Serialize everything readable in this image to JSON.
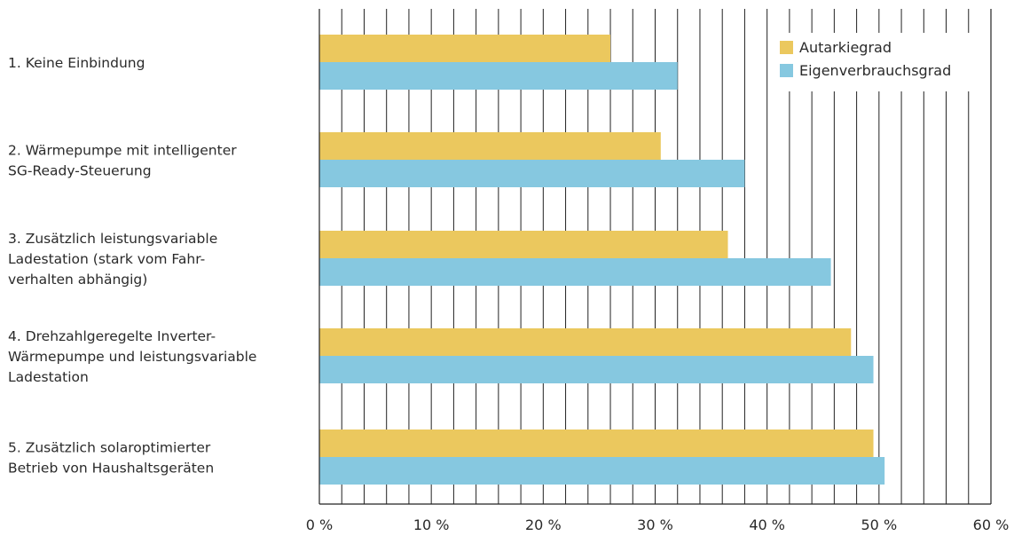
{
  "chart_data": {
    "type": "bar",
    "orientation": "horizontal",
    "categories": [
      [
        "1. Keine Einbindung"
      ],
      [
        "2. Wärmepumpe mit intelligenter",
        "SG-Ready-Steuerung"
      ],
      [
        "3. Zusätzlich leistungsvariable",
        "Ladestation (stark vom Fahr-",
        "verhalten abhängig)"
      ],
      [
        "4. Drehzahlgeregelte Inverter-",
        "Wärmepumpe und leistungsvariable",
        "Ladestation"
      ],
      [
        "5. Zusätzlich solaroptimierter",
        "Betrieb von Haushaltsgeräten"
      ]
    ],
    "series": [
      {
        "name": "Autarkiegrad",
        "color": "#EBC85E",
        "values": [
          26,
          30.5,
          36.5,
          47.5,
          49.5
        ]
      },
      {
        "name": "Eigenverbrauchsgrad",
        "color": "#86C8E0",
        "values": [
          32,
          38,
          45.7,
          49.5,
          50.5
        ]
      }
    ],
    "xlim": [
      0,
      60
    ],
    "x_ticks": [
      0,
      10,
      20,
      30,
      40,
      50,
      60
    ],
    "x_tick_labels": [
      "0 %",
      "10 %",
      "20 %",
      "30 %",
      "40 %",
      "50 %",
      "60 %"
    ],
    "grid_minor_step": 2,
    "grid": true,
    "legend_position": "top-right",
    "title": "",
    "xlabel": "",
    "ylabel": ""
  }
}
